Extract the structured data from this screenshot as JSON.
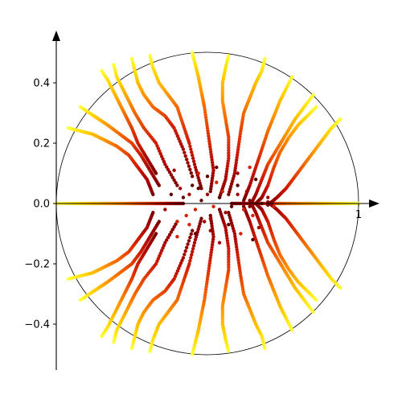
{
  "chart_data": {
    "type": "scatter",
    "title": "",
    "xlabel": "",
    "ylabel": "",
    "xlim": [
      -0.02,
      1.05
    ],
    "ylim": [
      -0.55,
      0.55
    ],
    "grid": false,
    "legend": "none",
    "unit_circle": {
      "center": [
        0.5,
        0.0
      ],
      "radius": 0.5
    },
    "x_ticks": [
      {
        "value": 1,
        "label": "1"
      }
    ],
    "y_ticks": [
      {
        "value": 0.4,
        "label": "0.4"
      },
      {
        "value": 0.2,
        "label": "0.2"
      },
      {
        "value": 0.0,
        "label": "0.0"
      },
      {
        "value": -0.2,
        "label": "−0.2"
      },
      {
        "value": -0.4,
        "label": "−0.4"
      }
    ],
    "colormap": [
      "#5c0000",
      "#a00000",
      "#d42000",
      "#f05a00",
      "#ff9a00",
      "#ffd400",
      "#ffff40"
    ],
    "trajectories": [
      [
        [
          0.0,
          0.0
        ],
        [
          0.06,
          0.0
        ],
        [
          0.12,
          0.0
        ],
        [
          0.18,
          0.0
        ],
        [
          0.24,
          0.0
        ],
        [
          0.29,
          0.0
        ],
        [
          0.34,
          0.0
        ],
        [
          0.38,
          0.0
        ],
        [
          0.42,
          0.0
        ]
      ],
      [
        [
          1.0,
          0.0
        ],
        [
          0.94,
          0.0
        ],
        [
          0.88,
          0.0
        ],
        [
          0.82,
          0.0
        ],
        [
          0.76,
          0.0
        ],
        [
          0.71,
          0.0
        ],
        [
          0.66,
          0.0
        ],
        [
          0.62,
          0.0
        ],
        [
          0.58,
          0.0
        ]
      ],
      [
        [
          0.15,
          0.44
        ],
        [
          0.17,
          0.41
        ],
        [
          0.19,
          0.37
        ],
        [
          0.21,
          0.33
        ],
        [
          0.23,
          0.29
        ],
        [
          0.25,
          0.25
        ],
        [
          0.27,
          0.2
        ],
        [
          0.3,
          0.15
        ],
        [
          0.33,
          0.1
        ]
      ],
      [
        [
          0.19,
          0.46
        ],
        [
          0.2,
          0.42
        ],
        [
          0.22,
          0.38
        ],
        [
          0.24,
          0.34
        ],
        [
          0.26,
          0.3
        ],
        [
          0.29,
          0.25
        ],
        [
          0.33,
          0.2
        ],
        [
          0.36,
          0.13
        ],
        [
          0.4,
          0.06
        ]
      ],
      [
        [
          0.25,
          0.48
        ],
        [
          0.26,
          0.44
        ],
        [
          0.27,
          0.4
        ],
        [
          0.29,
          0.36
        ],
        [
          0.32,
          0.32
        ],
        [
          0.36,
          0.29
        ],
        [
          0.39,
          0.25
        ],
        [
          0.42,
          0.18
        ],
        [
          0.45,
          0.09
        ]
      ],
      [
        [
          0.31,
          0.49
        ],
        [
          0.32,
          0.45
        ],
        [
          0.34,
          0.4
        ],
        [
          0.37,
          0.36
        ],
        [
          0.4,
          0.32
        ],
        [
          0.42,
          0.26
        ],
        [
          0.44,
          0.2
        ],
        [
          0.46,
          0.12
        ],
        [
          0.48,
          0.05
        ]
      ],
      [
        [
          0.08,
          0.32
        ],
        [
          0.11,
          0.3
        ],
        [
          0.14,
          0.28
        ],
        [
          0.17,
          0.26
        ],
        [
          0.21,
          0.23
        ],
        [
          0.25,
          0.2
        ],
        [
          0.28,
          0.16
        ],
        [
          0.31,
          0.11
        ],
        [
          0.34,
          0.06
        ]
      ],
      [
        [
          0.04,
          0.25
        ],
        [
          0.08,
          0.24
        ],
        [
          0.12,
          0.23
        ],
        [
          0.16,
          0.21
        ],
        [
          0.2,
          0.19
        ],
        [
          0.24,
          0.16
        ],
        [
          0.27,
          0.12
        ],
        [
          0.3,
          0.08
        ],
        [
          0.32,
          0.03
        ]
      ],
      [
        [
          0.45,
          0.5
        ],
        [
          0.46,
          0.46
        ],
        [
          0.47,
          0.42
        ],
        [
          0.48,
          0.37
        ],
        [
          0.49,
          0.32
        ],
        [
          0.5,
          0.25
        ],
        [
          0.51,
          0.18
        ],
        [
          0.52,
          0.11
        ],
        [
          0.51,
          0.04
        ]
      ],
      [
        [
          0.57,
          0.49
        ],
        [
          0.56,
          0.45
        ],
        [
          0.55,
          0.4
        ],
        [
          0.55,
          0.34
        ],
        [
          0.56,
          0.28
        ],
        [
          0.57,
          0.22
        ],
        [
          0.57,
          0.15
        ],
        [
          0.56,
          0.08
        ],
        [
          0.54,
          0.02
        ]
      ],
      [
        [
          0.69,
          0.48
        ],
        [
          0.68,
          0.44
        ],
        [
          0.66,
          0.4
        ],
        [
          0.64,
          0.35
        ],
        [
          0.62,
          0.3
        ],
        [
          0.61,
          0.24
        ],
        [
          0.6,
          0.17
        ],
        [
          0.59,
          0.1
        ],
        [
          0.57,
          0.03
        ]
      ],
      [
        [
          0.78,
          0.42
        ],
        [
          0.76,
          0.38
        ],
        [
          0.74,
          0.34
        ],
        [
          0.72,
          0.29
        ],
        [
          0.7,
          0.24
        ],
        [
          0.68,
          0.18
        ],
        [
          0.66,
          0.12
        ],
        [
          0.64,
          0.06
        ],
        [
          0.62,
          0.01
        ]
      ],
      [
        [
          0.85,
          0.36
        ],
        [
          0.82,
          0.32
        ],
        [
          0.79,
          0.28
        ],
        [
          0.76,
          0.23
        ],
        [
          0.73,
          0.18
        ],
        [
          0.7,
          0.13
        ],
        [
          0.68,
          0.08
        ],
        [
          0.66,
          0.03
        ],
        [
          0.64,
          -0.01
        ]
      ],
      [
        [
          0.94,
          0.28
        ],
        [
          0.91,
          0.25
        ],
        [
          0.88,
          0.21
        ],
        [
          0.85,
          0.17
        ],
        [
          0.82,
          0.13
        ],
        [
          0.79,
          0.09
        ],
        [
          0.76,
          0.05
        ],
        [
          0.73,
          0.02
        ],
        [
          0.7,
          -0.005
        ]
      ],
      [
        [
          0.86,
          0.32
        ],
        [
          0.83,
          0.29
        ],
        [
          0.8,
          0.26
        ],
        [
          0.77,
          0.22
        ],
        [
          0.74,
          0.17
        ],
        [
          0.72,
          0.12
        ],
        [
          0.7,
          0.06
        ],
        [
          0.68,
          0.02
        ],
        [
          0.66,
          0.0
        ]
      ],
      [
        [
          0.15,
          -0.44
        ],
        [
          0.17,
          -0.41
        ],
        [
          0.19,
          -0.37
        ],
        [
          0.21,
          -0.33
        ],
        [
          0.23,
          -0.29
        ],
        [
          0.25,
          -0.25
        ],
        [
          0.27,
          -0.2
        ],
        [
          0.3,
          -0.15
        ],
        [
          0.33,
          -0.1
        ]
      ],
      [
        [
          0.19,
          -0.46
        ],
        [
          0.2,
          -0.42
        ],
        [
          0.22,
          -0.38
        ],
        [
          0.24,
          -0.34
        ],
        [
          0.26,
          -0.3
        ],
        [
          0.29,
          -0.25
        ],
        [
          0.33,
          -0.2
        ],
        [
          0.36,
          -0.13
        ],
        [
          0.4,
          -0.06
        ]
      ],
      [
        [
          0.25,
          -0.48
        ],
        [
          0.26,
          -0.44
        ],
        [
          0.27,
          -0.4
        ],
        [
          0.29,
          -0.36
        ],
        [
          0.32,
          -0.32
        ],
        [
          0.36,
          -0.29
        ],
        [
          0.39,
          -0.25
        ],
        [
          0.42,
          -0.18
        ],
        [
          0.45,
          -0.09
        ]
      ],
      [
        [
          0.31,
          -0.49
        ],
        [
          0.32,
          -0.45
        ],
        [
          0.34,
          -0.4
        ],
        [
          0.37,
          -0.36
        ],
        [
          0.4,
          -0.32
        ],
        [
          0.42,
          -0.26
        ],
        [
          0.44,
          -0.2
        ],
        [
          0.46,
          -0.12
        ],
        [
          0.48,
          -0.05
        ]
      ],
      [
        [
          0.08,
          -0.32
        ],
        [
          0.11,
          -0.3
        ],
        [
          0.14,
          -0.28
        ],
        [
          0.17,
          -0.26
        ],
        [
          0.21,
          -0.23
        ],
        [
          0.25,
          -0.2
        ],
        [
          0.28,
          -0.16
        ],
        [
          0.31,
          -0.11
        ],
        [
          0.34,
          -0.06
        ]
      ],
      [
        [
          0.04,
          -0.25
        ],
        [
          0.08,
          -0.24
        ],
        [
          0.12,
          -0.23
        ],
        [
          0.16,
          -0.21
        ],
        [
          0.2,
          -0.19
        ],
        [
          0.24,
          -0.16
        ],
        [
          0.27,
          -0.12
        ],
        [
          0.3,
          -0.08
        ],
        [
          0.32,
          -0.03
        ]
      ],
      [
        [
          0.45,
          -0.5
        ],
        [
          0.46,
          -0.46
        ],
        [
          0.47,
          -0.42
        ],
        [
          0.48,
          -0.37
        ],
        [
          0.49,
          -0.32
        ],
        [
          0.5,
          -0.25
        ],
        [
          0.51,
          -0.18
        ],
        [
          0.52,
          -0.11
        ],
        [
          0.51,
          -0.04
        ]
      ],
      [
        [
          0.57,
          -0.49
        ],
        [
          0.56,
          -0.45
        ],
        [
          0.55,
          -0.4
        ],
        [
          0.55,
          -0.34
        ],
        [
          0.56,
          -0.28
        ],
        [
          0.57,
          -0.22
        ],
        [
          0.57,
          -0.15
        ],
        [
          0.56,
          -0.08
        ],
        [
          0.54,
          -0.02
        ]
      ],
      [
        [
          0.69,
          -0.48
        ],
        [
          0.68,
          -0.44
        ],
        [
          0.66,
          -0.4
        ],
        [
          0.64,
          -0.35
        ],
        [
          0.62,
          -0.3
        ],
        [
          0.61,
          -0.24
        ],
        [
          0.6,
          -0.17
        ],
        [
          0.59,
          -0.1
        ],
        [
          0.57,
          -0.03
        ]
      ],
      [
        [
          0.78,
          -0.42
        ],
        [
          0.76,
          -0.38
        ],
        [
          0.74,
          -0.34
        ],
        [
          0.72,
          -0.29
        ],
        [
          0.7,
          -0.24
        ],
        [
          0.68,
          -0.18
        ],
        [
          0.66,
          -0.12
        ],
        [
          0.64,
          -0.06
        ],
        [
          0.62,
          -0.01
        ]
      ],
      [
        [
          0.85,
          -0.36
        ],
        [
          0.82,
          -0.32
        ],
        [
          0.79,
          -0.28
        ],
        [
          0.76,
          -0.23
        ],
        [
          0.73,
          -0.18
        ],
        [
          0.7,
          -0.13
        ],
        [
          0.68,
          -0.08
        ],
        [
          0.66,
          -0.03
        ],
        [
          0.64,
          0.01
        ]
      ],
      [
        [
          0.94,
          -0.28
        ],
        [
          0.91,
          -0.25
        ],
        [
          0.88,
          -0.21
        ],
        [
          0.85,
          -0.17
        ],
        [
          0.82,
          -0.13
        ],
        [
          0.79,
          -0.09
        ],
        [
          0.76,
          -0.05
        ],
        [
          0.73,
          -0.02
        ],
        [
          0.7,
          0.005
        ]
      ],
      [
        [
          0.86,
          -0.32
        ],
        [
          0.83,
          -0.29
        ],
        [
          0.8,
          -0.26
        ],
        [
          0.77,
          -0.22
        ],
        [
          0.74,
          -0.17
        ],
        [
          0.72,
          -0.12
        ],
        [
          0.7,
          -0.06
        ],
        [
          0.68,
          -0.02
        ],
        [
          0.66,
          0.0
        ]
      ]
    ],
    "scatter_points": [
      [
        0.42,
        0.02
      ],
      [
        0.44,
        0.03
      ],
      [
        0.46,
        -0.02
      ],
      [
        0.48,
        0.01
      ],
      [
        0.5,
        0.03
      ],
      [
        0.52,
        -0.01
      ],
      [
        0.54,
        0.02
      ],
      [
        0.56,
        -0.03
      ],
      [
        0.43,
        -0.04
      ],
      [
        0.47,
        0.05
      ],
      [
        0.51,
        -0.05
      ],
      [
        0.55,
        0.04
      ],
      [
        0.58,
        -0.01
      ],
      [
        0.6,
        0.03
      ],
      [
        0.62,
        -0.02
      ],
      [
        0.45,
        0.06
      ],
      [
        0.49,
        -0.06
      ],
      [
        0.53,
        0.07
      ],
      [
        0.57,
        -0.07
      ],
      [
        0.41,
        0.05
      ],
      [
        0.44,
        -0.07
      ],
      [
        0.6,
        0.06
      ],
      [
        0.63,
        0.04
      ],
      [
        0.65,
        -0.04
      ],
      [
        0.68,
        0.0
      ],
      [
        0.7,
        0.02
      ],
      [
        0.72,
        -0.01
      ],
      [
        0.38,
        0.03
      ],
      [
        0.36,
        -0.02
      ],
      [
        0.4,
        -0.06
      ],
      [
        0.5,
        0.09
      ],
      [
        0.51,
        -0.09
      ],
      [
        0.47,
        0.1
      ],
      [
        0.46,
        -0.1
      ],
      [
        0.6,
        0.1
      ],
      [
        0.61,
        -0.1
      ],
      [
        0.66,
        0.08
      ],
      [
        0.67,
        -0.08
      ],
      [
        0.64,
        0.12
      ],
      [
        0.65,
        -0.12
      ],
      [
        0.39,
        0.11
      ],
      [
        0.4,
        -0.11
      ],
      [
        0.53,
        0.12
      ],
      [
        0.54,
        -0.13
      ]
    ]
  }
}
